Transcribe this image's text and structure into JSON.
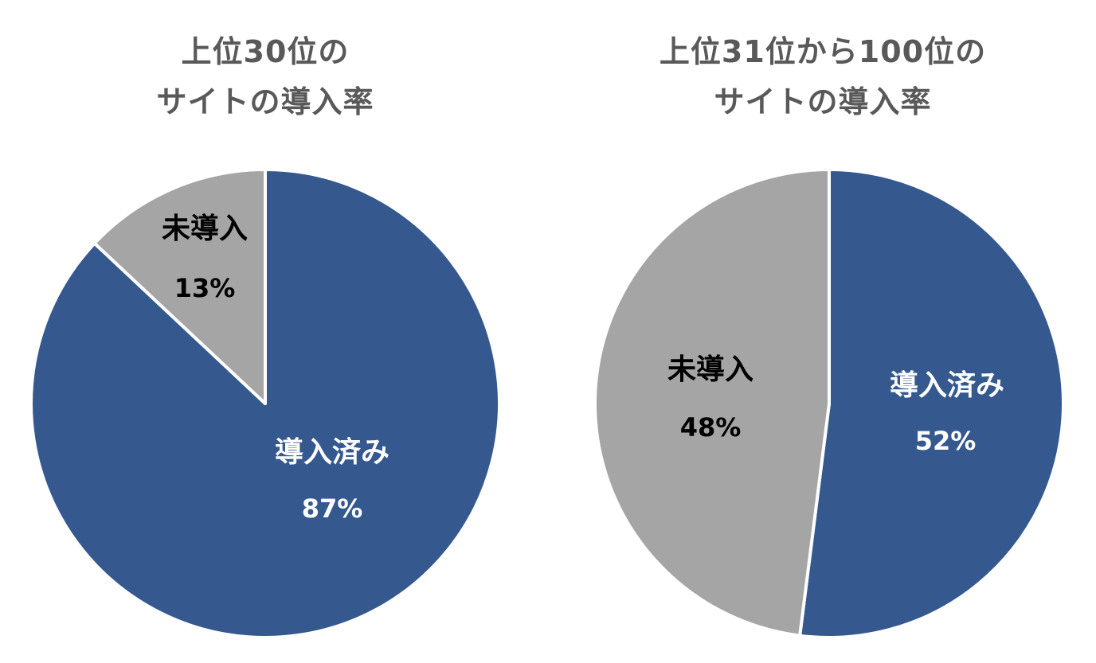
{
  "colors": {
    "implemented": "#35598F",
    "not_implemented": "#A5A5A5",
    "title": "#595959",
    "label_dark": "#000000",
    "label_light": "#ffffff",
    "divider": "#ffffff"
  },
  "charts": [
    {
      "title_line1": "上位30位の",
      "title_line2": "サイトの導入率"
    },
    {
      "title_line1": "上位31位から100位の",
      "title_line2": "サイトの導入率"
    }
  ],
  "chart_data": [
    {
      "type": "pie",
      "title": "上位30位の サイトの導入率",
      "slices": [
        {
          "label": "導入済み",
          "value": 87,
          "value_label": "87%",
          "color": "#35598F"
        },
        {
          "label": "未導入",
          "value": 13,
          "value_label": "13%",
          "color": "#A5A5A5"
        }
      ],
      "start": "12 o'clock",
      "direction": "clockwise",
      "legend": "none"
    },
    {
      "type": "pie",
      "title": "上位31位から100位の サイトの導入率",
      "slices": [
        {
          "label": "導入済み",
          "value": 52,
          "value_label": "52%",
          "color": "#35598F"
        },
        {
          "label": "未導入",
          "value": 48,
          "value_label": "48%",
          "color": "#A5A5A5"
        }
      ],
      "start": "12 o'clock",
      "direction": "clockwise",
      "legend": "none"
    }
  ]
}
